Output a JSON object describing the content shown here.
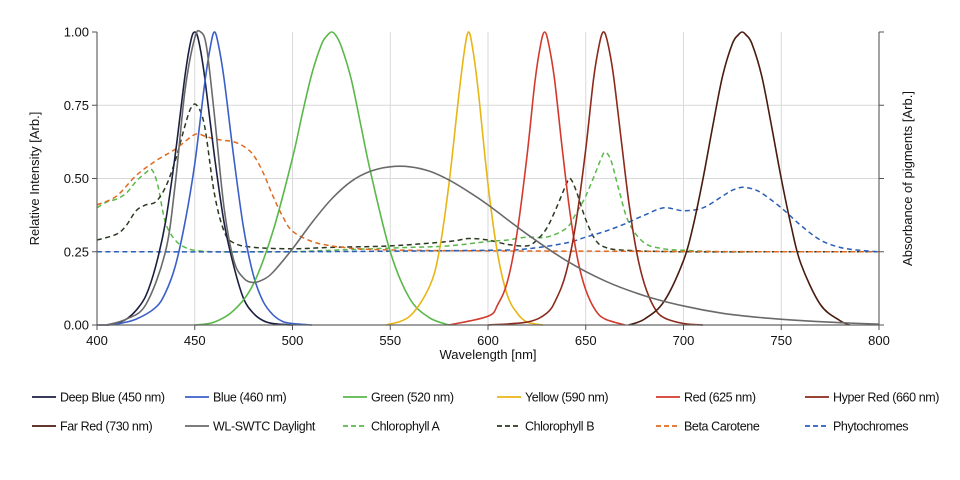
{
  "chart_data": {
    "type": "line",
    "title": "",
    "xlabel": "Wavelength [nm]",
    "ylabel": "Relative Intensity [Arb.]",
    "ylabel_right": "Absorbance of pigments [Arb.]",
    "xlim": [
      400,
      800
    ],
    "ylim": [
      0,
      1
    ],
    "x_ticks": [
      "400",
      "450",
      "500",
      "550",
      "600",
      "650",
      "700",
      "750",
      "800"
    ],
    "y_ticks": [
      "0.00",
      "0.25",
      "0.50",
      "0.75",
      "1.00"
    ],
    "grid": true,
    "legend_position": "bottom",
    "series": [
      {
        "name": "Deep Blue (450 nm)",
        "color": "#1c2040",
        "dash": false,
        "x": [
          400,
          405,
          410,
          415,
          420,
          425,
          430,
          435,
          440,
          445,
          448,
          450,
          452,
          455,
          460,
          465,
          470,
          475,
          480,
          485,
          490,
          500
        ],
        "y": [
          0,
          0,
          0.005,
          0.02,
          0.05,
          0.1,
          0.2,
          0.35,
          0.58,
          0.85,
          0.97,
          1.0,
          0.97,
          0.85,
          0.58,
          0.35,
          0.2,
          0.09,
          0.04,
          0.015,
          0.005,
          0
        ]
      },
      {
        "name": "Blue (460 nm)",
        "color": "#3a5fc8",
        "dash": false,
        "x": [
          405,
          410,
          420,
          430,
          435,
          440,
          445,
          450,
          455,
          458,
          460,
          462,
          465,
          470,
          475,
          480,
          485,
          490,
          495,
          500,
          510
        ],
        "y": [
          0,
          0.003,
          0.02,
          0.06,
          0.11,
          0.2,
          0.35,
          0.55,
          0.82,
          0.95,
          1.0,
          0.96,
          0.84,
          0.57,
          0.33,
          0.17,
          0.08,
          0.035,
          0.012,
          0.005,
          0
        ]
      },
      {
        "name": "Green (520 nm)",
        "color": "#5ab84a",
        "dash": false,
        "x": [
          450,
          460,
          470,
          480,
          490,
          500,
          505,
          510,
          515,
          518,
          520,
          522,
          525,
          530,
          535,
          540,
          550,
          560,
          570,
          580
        ],
        "y": [
          0,
          0.01,
          0.05,
          0.14,
          0.32,
          0.57,
          0.72,
          0.86,
          0.96,
          0.99,
          1.0,
          0.99,
          0.95,
          0.84,
          0.68,
          0.52,
          0.25,
          0.09,
          0.025,
          0
        ]
      },
      {
        "name": "Yellow (590 nm)",
        "color": "#e8b516",
        "dash": false,
        "x": [
          548,
          560,
          570,
          575,
          580,
          585,
          588,
          590,
          592,
          595,
          600,
          605,
          610,
          615,
          620,
          628
        ],
        "y": [
          0,
          0.03,
          0.13,
          0.25,
          0.48,
          0.78,
          0.94,
          1.0,
          0.95,
          0.8,
          0.48,
          0.24,
          0.1,
          0.04,
          0.01,
          0
        ]
      },
      {
        "name": "Red (625 nm)",
        "color": "#d23a2e",
        "dash": false,
        "x": [
          580,
          600,
          605,
          610,
          615,
          620,
          624,
          627,
          629,
          631,
          634,
          638,
          642,
          646,
          650,
          655,
          660,
          670
        ],
        "y": [
          0,
          0.03,
          0.07,
          0.15,
          0.32,
          0.58,
          0.83,
          0.96,
          1.0,
          0.96,
          0.84,
          0.6,
          0.38,
          0.22,
          0.12,
          0.05,
          0.02,
          0
        ]
      },
      {
        "name": "Hyper Red (660 nm)",
        "color": "#8c2a1c",
        "dash": false,
        "x": [
          600,
          620,
          630,
          635,
          640,
          645,
          650,
          654,
          657,
          659,
          661,
          664,
          668,
          672,
          676,
          680,
          685,
          690,
          700,
          710
        ],
        "y": [
          0,
          0.01,
          0.04,
          0.09,
          0.18,
          0.35,
          0.6,
          0.84,
          0.96,
          1.0,
          0.97,
          0.86,
          0.64,
          0.42,
          0.25,
          0.14,
          0.06,
          0.025,
          0.005,
          0
        ]
      },
      {
        "name": "Far Red (730 nm)",
        "color": "#4a1c10",
        "dash": false,
        "x": [
          672,
          680,
          690,
          700,
          705,
          710,
          715,
          720,
          725,
          728,
          730,
          732,
          735,
          740,
          745,
          750,
          755,
          760,
          770,
          780,
          785
        ],
        "y": [
          0,
          0.02,
          0.08,
          0.22,
          0.34,
          0.5,
          0.68,
          0.85,
          0.96,
          0.99,
          1.0,
          0.99,
          0.96,
          0.85,
          0.68,
          0.5,
          0.34,
          0.21,
          0.07,
          0.015,
          0
        ]
      },
      {
        "name": "WL-SWTC Daylight",
        "color": "#6a6a6a",
        "dash": false,
        "x": [
          405,
          415,
          425,
          435,
          440,
          445,
          450,
          453,
          456,
          460,
          465,
          470,
          475,
          480,
          485,
          490,
          500,
          510,
          520,
          530,
          540,
          550,
          560,
          570,
          580,
          590,
          600,
          620,
          640,
          660,
          680,
          700,
          720,
          740,
          760,
          780,
          800
        ],
        "y": [
          0,
          0.02,
          0.07,
          0.25,
          0.48,
          0.8,
          0.98,
          1.0,
          0.95,
          0.72,
          0.4,
          0.22,
          0.16,
          0.145,
          0.155,
          0.18,
          0.26,
          0.35,
          0.43,
          0.49,
          0.525,
          0.54,
          0.54,
          0.525,
          0.495,
          0.455,
          0.41,
          0.31,
          0.22,
          0.15,
          0.1,
          0.065,
          0.04,
          0.025,
          0.015,
          0.008,
          0.003
        ]
      },
      {
        "name": "Chlorophyll A",
        "color": "#5ab84a",
        "dash": true,
        "x": [
          400,
          405,
          410,
          415,
          420,
          425,
          428,
          431,
          435,
          440,
          445,
          450,
          460,
          480,
          500,
          520,
          540,
          560,
          580,
          600,
          610,
          620,
          630,
          640,
          645,
          650,
          655,
          658,
          660,
          663,
          667,
          672,
          680,
          690,
          700,
          720,
          750,
          800
        ],
        "y": [
          0.4,
          0.42,
          0.43,
          0.45,
          0.49,
          0.52,
          0.53,
          0.48,
          0.35,
          0.29,
          0.265,
          0.255,
          0.25,
          0.25,
          0.25,
          0.255,
          0.26,
          0.265,
          0.27,
          0.285,
          0.29,
          0.3,
          0.3,
          0.33,
          0.38,
          0.44,
          0.52,
          0.57,
          0.59,
          0.56,
          0.46,
          0.35,
          0.28,
          0.26,
          0.255,
          0.25,
          0.25,
          0.25
        ]
      },
      {
        "name": "Chlorophyll B",
        "color": "#2a3a20",
        "dash": true,
        "x": [
          400,
          410,
          415,
          420,
          425,
          430,
          435,
          440,
          445,
          448,
          451,
          455,
          460,
          465,
          470,
          480,
          500,
          520,
          550,
          580,
          590,
          600,
          610,
          620,
          625,
          630,
          635,
          640,
          642,
          645,
          650,
          655,
          660,
          670,
          700,
          750,
          800
        ],
        "y": [
          0.29,
          0.31,
          0.34,
          0.39,
          0.41,
          0.42,
          0.47,
          0.56,
          0.68,
          0.74,
          0.75,
          0.68,
          0.45,
          0.32,
          0.28,
          0.265,
          0.26,
          0.265,
          0.27,
          0.285,
          0.295,
          0.29,
          0.275,
          0.27,
          0.29,
          0.33,
          0.4,
          0.48,
          0.5,
          0.46,
          0.36,
          0.29,
          0.265,
          0.255,
          0.25,
          0.25,
          0.25
        ]
      },
      {
        "name": "Beta Carotene",
        "color": "#e06a20",
        "dash": true,
        "x": [
          400,
          410,
          420,
          430,
          440,
          450,
          455,
          460,
          465,
          470,
          475,
          480,
          485,
          490,
          495,
          500,
          510,
          520,
          530,
          540,
          560,
          600,
          650,
          700,
          750,
          800
        ],
        "y": [
          0.41,
          0.44,
          0.51,
          0.56,
          0.6,
          0.65,
          0.645,
          0.635,
          0.63,
          0.625,
          0.61,
          0.58,
          0.52,
          0.44,
          0.37,
          0.32,
          0.285,
          0.27,
          0.262,
          0.258,
          0.255,
          0.253,
          0.252,
          0.251,
          0.25,
          0.25
        ]
      },
      {
        "name": "Phytochromes",
        "color": "#2a5eb8",
        "dash": true,
        "x": [
          400,
          500,
          600,
          620,
          640,
          650,
          660,
          670,
          680,
          690,
          700,
          710,
          720,
          725,
          730,
          735,
          740,
          750,
          760,
          770,
          780,
          790,
          800
        ],
        "y": [
          0.25,
          0.25,
          0.255,
          0.26,
          0.28,
          0.3,
          0.32,
          0.345,
          0.375,
          0.4,
          0.39,
          0.4,
          0.44,
          0.46,
          0.47,
          0.465,
          0.45,
          0.4,
          0.34,
          0.29,
          0.265,
          0.255,
          0.25
        ]
      }
    ]
  }
}
